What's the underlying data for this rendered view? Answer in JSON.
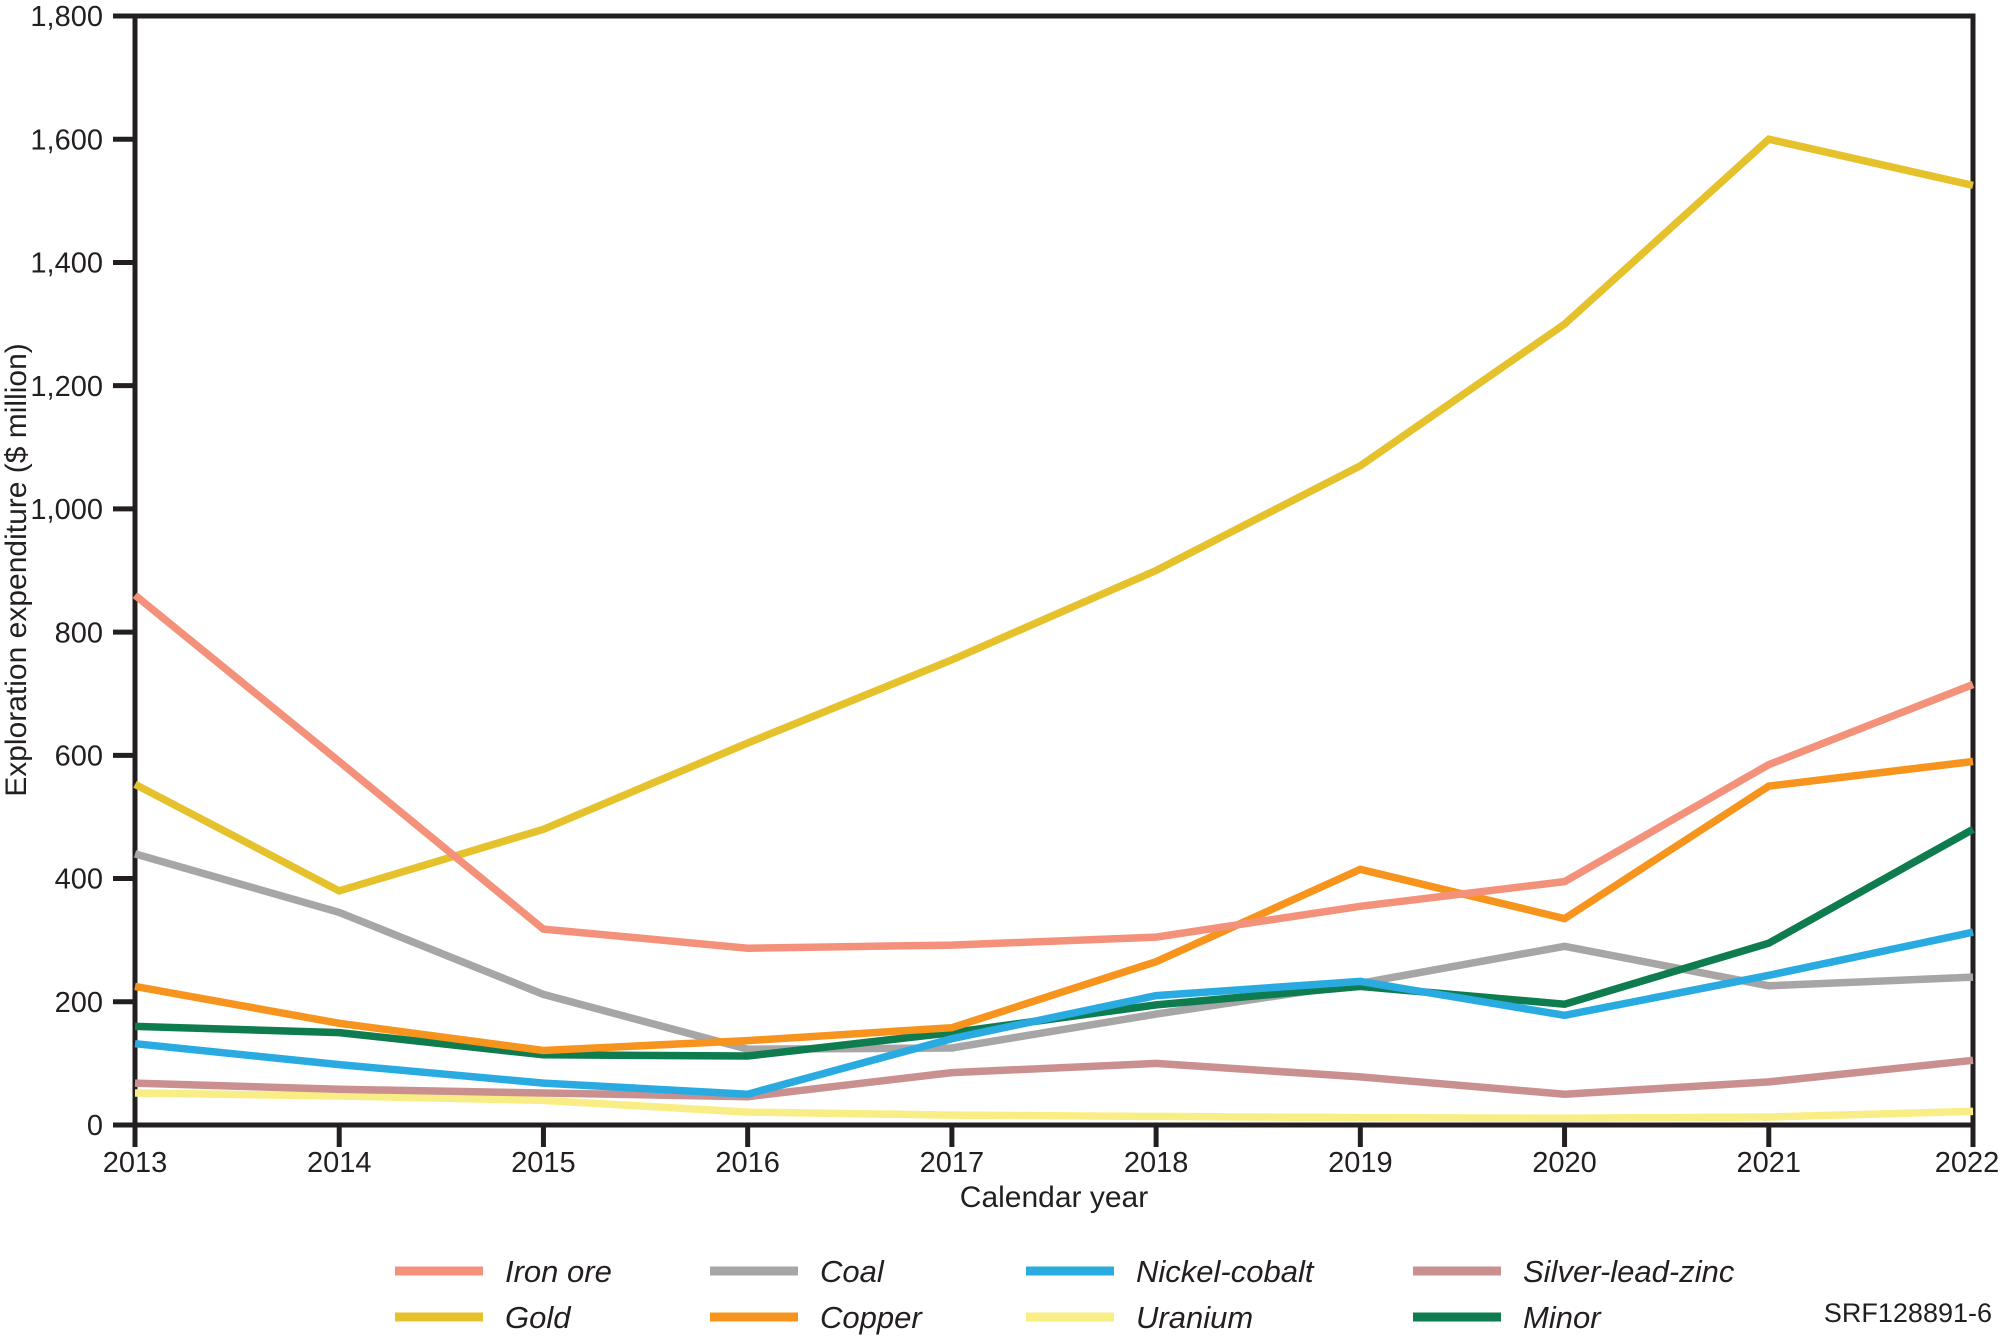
{
  "chart_data": {
    "type": "line",
    "title": "",
    "xlabel": "Calendar year",
    "ylabel": "Exploration expenditure ($ million)",
    "footnote": "SRF128891-6",
    "x": [
      2013,
      2014,
      2015,
      2016,
      2017,
      2018,
      2019,
      2020,
      2021,
      2022
    ],
    "ylim": [
      0,
      1800
    ],
    "ytick_interval": 200,
    "y_tick_labels": [
      "0",
      "200",
      "400",
      "600",
      "800",
      "1,000",
      "1,200",
      "1,400",
      "1,600",
      "1,800"
    ],
    "grid": "off",
    "legend_position": "bottom",
    "axis_color": "#231f20",
    "series": [
      {
        "name": "Iron ore",
        "color": "#F4917A",
        "values": [
          860,
          590,
          318,
          287,
          292,
          305,
          355,
          395,
          585,
          715
        ]
      },
      {
        "name": "Gold",
        "color": "#E5C22B",
        "values": [
          553,
          380,
          480,
          620,
          755,
          900,
          1070,
          1300,
          1600,
          1525
        ]
      },
      {
        "name": "Coal",
        "color": "#A7A5A6",
        "values": [
          440,
          345,
          212,
          123,
          125,
          180,
          230,
          290,
          226,
          240
        ]
      },
      {
        "name": "Copper",
        "color": "#F7941E",
        "values": [
          225,
          165,
          121,
          137,
          158,
          265,
          415,
          335,
          550,
          590
        ]
      },
      {
        "name": "Nickel-cobalt",
        "color": "#29ABE2",
        "values": [
          132,
          98,
          68,
          50,
          140,
          210,
          233,
          178,
          243,
          313
        ]
      },
      {
        "name": "Uranium",
        "color": "#F9EE85",
        "values": [
          52,
          47,
          40,
          21,
          16,
          14,
          12,
          11,
          13,
          22
        ]
      },
      {
        "name": "Silver-lead-zinc",
        "color": "#C9908F",
        "values": [
          68,
          58,
          52,
          46,
          85,
          100,
          78,
          50,
          70,
          105
        ]
      },
      {
        "name": "Minor",
        "color": "#0E7C4E",
        "values": [
          160,
          150,
          114,
          112,
          150,
          195,
          225,
          196,
          295,
          480
        ]
      }
    ],
    "draw_order": [
      "Uranium",
      "Silver-lead-zinc",
      "Coal",
      "Minor",
      "Nickel-cobalt",
      "Gold",
      "Copper",
      "Iron ore"
    ],
    "legend_rows": [
      [
        "Iron ore",
        "Coal",
        "Nickel-cobalt",
        "Silver-lead-zinc"
      ],
      [
        "Gold",
        "Copper",
        "Uranium",
        "Minor"
      ]
    ]
  }
}
